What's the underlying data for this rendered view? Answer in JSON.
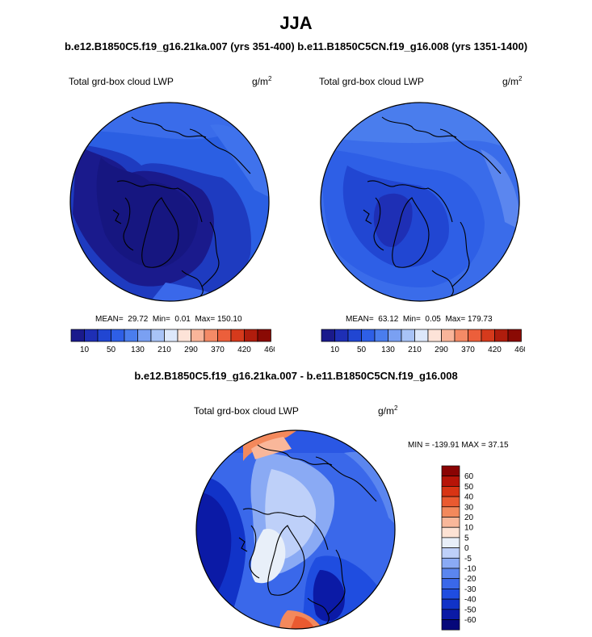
{
  "page": {
    "season": "JJA",
    "runs_title": "b.e12.B1850C5.f19_g16.21ka.007 (yrs 351-400) b.e11.B1850C5CN.f19_g16.008 (yrs 1351-1400)",
    "diff_title": "b.e12.B1850C5.f19_g16.21ka.007 - b.e11.B1850C5CN.f19_g16.008"
  },
  "colors": {
    "scale_lwp": [
      "#1a1a8c",
      "#1e2fb5",
      "#2146d2",
      "#2e5fe6",
      "#4a7ded",
      "#7aa0f2",
      "#a8c3f7",
      "#dde8fb",
      "#fde3d8",
      "#f9b59a",
      "#f48a66",
      "#ec5f3b",
      "#d63a1c",
      "#b01d0d",
      "#8a0a04"
    ],
    "scale_diff": [
      "#06087a",
      "#0b1aa6",
      "#1133c8",
      "#1f4de0",
      "#3a68ea",
      "#5b86ef",
      "#8aaaf4",
      "#bed0f9",
      "#e8eff9",
      "#fde2d4",
      "#f9b79a",
      "#f3895c",
      "#ea5a30",
      "#d83414",
      "#b71408",
      "#8a0303"
    ],
    "coast": "#000000"
  },
  "chart_data": [
    {
      "type": "heatmap",
      "title": "Total grd-box cloud LWP",
      "units": "g/m",
      "units_sup": "2",
      "stats": {
        "mean_label": "MEAN=",
        "mean": "29.72",
        "min_label": "Min=",
        "min": "0.01",
        "max_label": "Max=",
        "max": "150.10"
      },
      "colorbar_levels": [
        10,
        50,
        130,
        210,
        290,
        370,
        420,
        460
      ],
      "projection": "north-polar stereographic"
    },
    {
      "type": "heatmap",
      "title": "Total grd-box cloud LWP",
      "units": "g/m",
      "units_sup": "2",
      "stats": {
        "mean_label": "MEAN=",
        "mean": "63.12",
        "min_label": "Min=",
        "min": "0.05",
        "max_label": "Max=",
        "max": "179.73"
      },
      "colorbar_levels": [
        10,
        50,
        130,
        210,
        290,
        370,
        420,
        460
      ],
      "projection": "north-polar stereographic"
    },
    {
      "type": "heatmap",
      "title": "Total grd-box cloud LWP",
      "units": "g/m",
      "units_sup": "2",
      "stats_text": "MIN = -139.91 MAX =  37.15",
      "colorbar_levels": [
        60,
        50,
        40,
        30,
        20,
        10,
        5,
        0,
        -5,
        -10,
        -20,
        -30,
        -40,
        -50,
        -60
      ],
      "projection": "north-polar stereographic"
    }
  ]
}
